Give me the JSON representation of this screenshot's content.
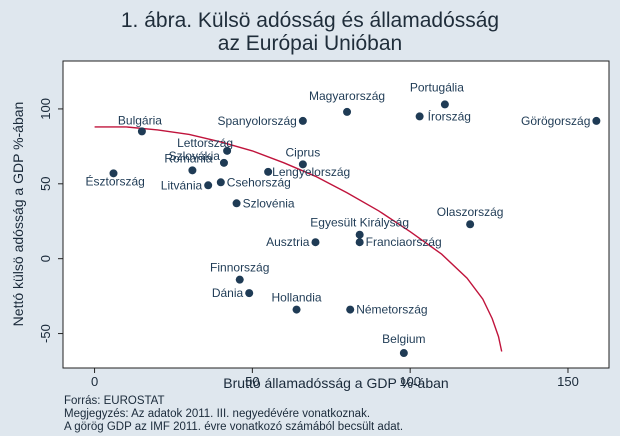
{
  "chart_data": {
    "type": "scatter",
    "title": [
      "1. ábra. Külsö adósság és államadósság",
      "az Európai Unióban"
    ],
    "xlabel": "Bruttó államadósság a GDP %-ában",
    "ylabel": "Nettó külsö adósság a GDP %-ában",
    "xlim": [
      -10,
      163
    ],
    "ylim": [
      -73,
      132
    ],
    "xticks": [
      0,
      50,
      100,
      150
    ],
    "yticks": [
      -50,
      0,
      50,
      100
    ],
    "grid": false,
    "marker_color": "#1f3b55",
    "curve_color": "#c0143c",
    "points": [
      {
        "label": "Bulgária",
        "x": 15,
        "y": 85
      },
      {
        "label": "Észtország",
        "x": 6,
        "y": 57
      },
      {
        "label": "Spanyolország",
        "x": 66,
        "y": 92
      },
      {
        "label": "Magyarország",
        "x": 80,
        "y": 98
      },
      {
        "label": "Portugália",
        "x": 111,
        "y": 103
      },
      {
        "label": "Írország",
        "x": 103,
        "y": 95
      },
      {
        "label": "Görögország",
        "x": 159,
        "y": 92
      },
      {
        "label": "Lettország",
        "x": 42,
        "y": 72
      },
      {
        "label": "Szlovákia",
        "x": 41,
        "y": 64
      },
      {
        "label": "Románia",
        "x": 31,
        "y": 59
      },
      {
        "label": "Ciprus",
        "x": 66,
        "y": 63
      },
      {
        "label": "Lengyelország",
        "x": 55,
        "y": 58
      },
      {
        "label": "Litvánia",
        "x": 36,
        "y": 49
      },
      {
        "label": "Csehország",
        "x": 40,
        "y": 51
      },
      {
        "label": "Szlovénia",
        "x": 45,
        "y": 37
      },
      {
        "label": "Olaszország",
        "x": 119,
        "y": 23
      },
      {
        "label": "Egyesült Királyság",
        "x": 84,
        "y": 16
      },
      {
        "label": "Ausztria",
        "x": 70,
        "y": 11
      },
      {
        "label": "Franciaország",
        "x": 84,
        "y": 11
      },
      {
        "label": "Finnország",
        "x": 46,
        "y": -14
      },
      {
        "label": "Dánia",
        "x": 49,
        "y": -23
      },
      {
        "label": "Hollandia",
        "x": 64,
        "y": -34
      },
      {
        "label": "Németország",
        "x": 81,
        "y": -34
      },
      {
        "label": "Belgium",
        "x": 98,
        "y": -63
      }
    ],
    "fit_curve": [
      [
        0,
        88
      ],
      [
        10,
        88
      ],
      [
        20,
        86
      ],
      [
        30,
        83
      ],
      [
        40,
        78
      ],
      [
        50,
        72
      ],
      [
        60,
        64
      ],
      [
        70,
        55
      ],
      [
        80,
        44
      ],
      [
        90,
        32
      ],
      [
        100,
        18
      ],
      [
        110,
        3
      ],
      [
        118,
        -13
      ],
      [
        123,
        -27
      ],
      [
        126,
        -40
      ],
      [
        128,
        -52
      ],
      [
        129,
        -62
      ]
    ]
  },
  "footer": {
    "source": "Forrás: EUROSTAT",
    "note1": "Megjegyzés: Az adatok 2011. III. negyedévére vonatkoznak.",
    "note2": "A görög GDP az IMF 2011. évre vonatkozó számából becsült adat."
  }
}
